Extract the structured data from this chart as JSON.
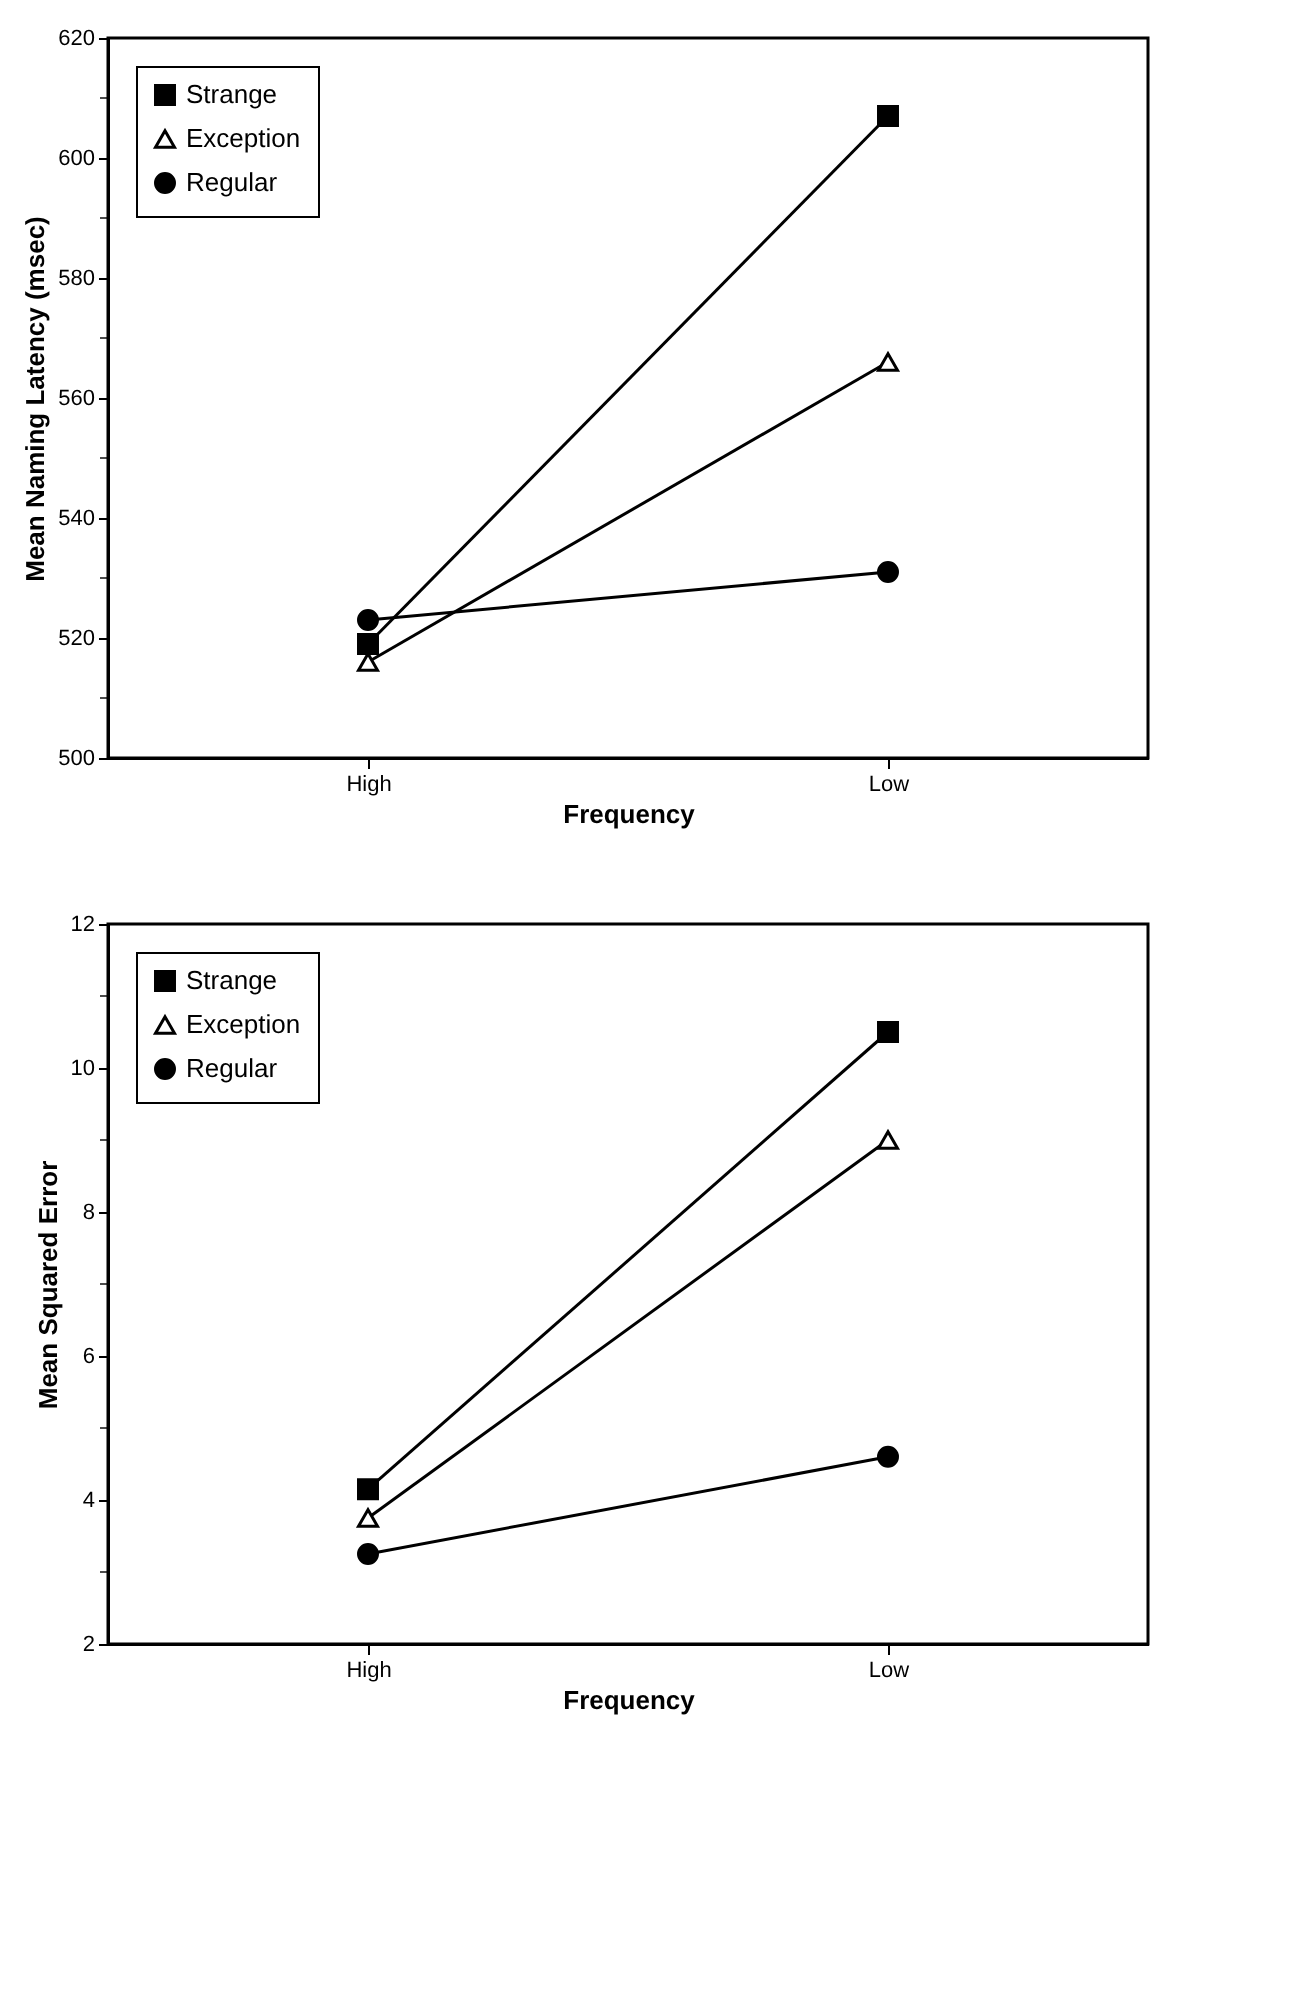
{
  "chart_data": [
    {
      "type": "line",
      "xlabel": "Frequency",
      "ylabel": "Mean Naming Latency (msec)",
      "categories": [
        "High",
        "Low"
      ],
      "series": [
        {
          "name": "Strange",
          "color": "#000000",
          "marker": "square",
          "values": [
            519,
            607
          ]
        },
        {
          "name": "Exception",
          "color": "#000000",
          "marker": "triangle",
          "values": [
            516,
            566
          ]
        },
        {
          "name": "Regular",
          "color": "#000000",
          "marker": "circle",
          "values": [
            523,
            531
          ]
        }
      ],
      "ylim": [
        500,
        620
      ],
      "yticks": [
        500,
        {
          "value": 510,
          "label": null
        },
        520,
        {
          "value": 530,
          "label": null
        },
        540,
        {
          "value": 550,
          "label": null
        },
        560,
        {
          "value": 570,
          "label": null
        },
        580,
        {
          "value": 590,
          "label": null
        },
        600,
        {
          "value": 610,
          "label": null
        },
        620
      ],
      "grid": false,
      "legend": "top left",
      "line_style": "solid"
    },
    {
      "type": "line",
      "xlabel": "Frequency",
      "ylabel": "Mean Squared Error",
      "categories": [
        "High",
        "Low"
      ],
      "series": [
        {
          "name": "Strange",
          "color": "#000000",
          "marker": "square",
          "values": [
            4.15,
            10.5
          ]
        },
        {
          "name": "Exception",
          "color": "#000000",
          "marker": "triangle",
          "values": [
            3.75,
            9.0
          ]
        },
        {
          "name": "Regular",
          "color": "#000000",
          "marker": "circle",
          "values": [
            3.25,
            4.6
          ]
        }
      ],
      "ylim": [
        2,
        12
      ],
      "yticks": [
        2,
        {
          "value": 3,
          "label": null
        },
        4,
        {
          "value": 5,
          "label": null
        },
        6,
        {
          "value": 7,
          "label": null
        },
        8,
        {
          "value": 9,
          "label": null
        },
        10,
        {
          "value": 11,
          "label": null
        },
        12
      ],
      "grid": false,
      "legend": "top left",
      "line_style": "solid"
    }
  ]
}
